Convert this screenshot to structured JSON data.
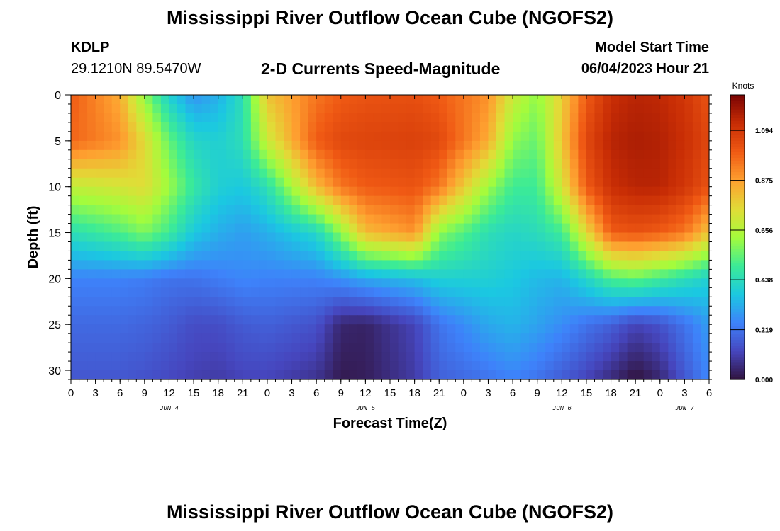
{
  "header": {
    "title": "Mississippi River Outflow Ocean Cube (NGOFS2)",
    "station_id": "KDLP",
    "station_coords": "29.1210N  89.5470W",
    "subtitle": "2-D Currents Speed-Magnitude",
    "model_start_label": "Model Start Time",
    "model_start_value": "06/04/2023 Hour 21"
  },
  "footer": {
    "title": "Mississippi River Outflow Ocean Cube (NGOFS2)"
  },
  "chart_data": {
    "type": "heatmap",
    "title": "2-D Currents Speed-Magnitude",
    "xlabel": "Forecast Time(Z)",
    "ylabel": "Depth (ft)",
    "x_range_hours": [
      0,
      78
    ],
    "x_tick_labels": [
      "0",
      "3",
      "6",
      "9",
      "12",
      "15",
      "18",
      "21",
      "0",
      "3",
      "6",
      "9",
      "12",
      "15",
      "18",
      "21",
      "0",
      "3",
      "6",
      "9",
      "12",
      "15",
      "18",
      "21",
      "0",
      "3",
      "6"
    ],
    "date_labels": [
      {
        "hour": 12,
        "label": "JUN 4"
      },
      {
        "hour": 36,
        "label": "JUN 5"
      },
      {
        "hour": 60,
        "label": "JUN 6"
      },
      {
        "hour": 75,
        "label": "JUN 7"
      }
    ],
    "ylim": [
      0,
      31
    ],
    "y_ticks": [
      0,
      5,
      10,
      15,
      20,
      25,
      30
    ],
    "colorbar": {
      "label": "Knots",
      "ticks": [
        "0.000",
        "0.219",
        "0.438",
        "0.656",
        "0.875",
        "1.094"
      ],
      "range": [
        0,
        1.25
      ]
    },
    "depths": [
      0,
      5,
      10,
      15,
      20,
      25,
      31
    ],
    "times": [
      0,
      6,
      9,
      12,
      15,
      18,
      21,
      24,
      30,
      33,
      36,
      42,
      45,
      51,
      54,
      57,
      60,
      63,
      66,
      69,
      72,
      75,
      78
    ],
    "values": [
      [
        1.0,
        0.85,
        0.6,
        0.4,
        0.28,
        0.33,
        0.45,
        0.8,
        0.95,
        1.0,
        1.02,
        1.03,
        1.0,
        0.9,
        0.7,
        0.6,
        0.78,
        1.0,
        1.12,
        1.15,
        1.14,
        1.1,
        1.02
      ],
      [
        0.98,
        0.9,
        0.75,
        0.55,
        0.42,
        0.4,
        0.45,
        0.7,
        1.0,
        1.05,
        1.06,
        1.07,
        1.05,
        0.85,
        0.6,
        0.55,
        0.8,
        1.05,
        1.15,
        1.17,
        1.16,
        1.12,
        1.05
      ],
      [
        0.68,
        0.72,
        0.75,
        0.62,
        0.48,
        0.4,
        0.38,
        0.45,
        0.82,
        0.95,
        1.0,
        1.02,
        0.95,
        0.62,
        0.5,
        0.5,
        0.72,
        1.0,
        1.12,
        1.15,
        1.15,
        1.1,
        1.02
      ],
      [
        0.45,
        0.52,
        0.58,
        0.5,
        0.38,
        0.33,
        0.3,
        0.33,
        0.42,
        0.6,
        0.82,
        0.9,
        0.6,
        0.45,
        0.42,
        0.44,
        0.5,
        0.75,
        1.0,
        1.02,
        1.0,
        0.95,
        0.8
      ],
      [
        0.25,
        0.25,
        0.24,
        0.22,
        0.22,
        0.24,
        0.26,
        0.25,
        0.25,
        0.28,
        0.32,
        0.36,
        0.4,
        0.4,
        0.38,
        0.35,
        0.34,
        0.42,
        0.52,
        0.55,
        0.5,
        0.45,
        0.4
      ],
      [
        0.2,
        0.2,
        0.19,
        0.17,
        0.14,
        0.14,
        0.17,
        0.18,
        0.15,
        0.05,
        0.04,
        0.12,
        0.22,
        0.32,
        0.34,
        0.31,
        0.27,
        0.22,
        0.18,
        0.12,
        0.15,
        0.22,
        0.3
      ],
      [
        0.16,
        0.16,
        0.15,
        0.13,
        0.11,
        0.1,
        0.12,
        0.12,
        0.08,
        0.02,
        0.03,
        0.1,
        0.18,
        0.22,
        0.25,
        0.22,
        0.17,
        0.12,
        0.06,
        0.0,
        0.05,
        0.16,
        0.26
      ]
    ]
  }
}
